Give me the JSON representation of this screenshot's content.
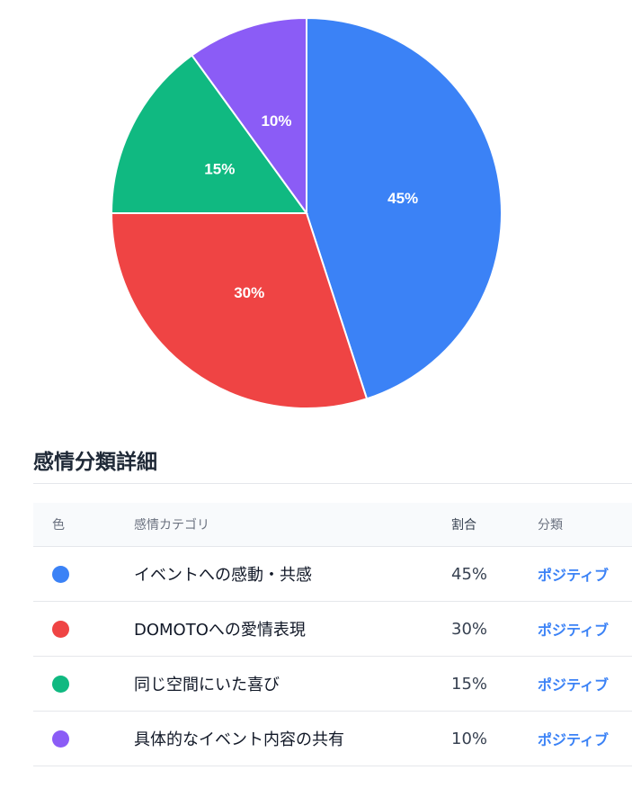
{
  "chart_data": {
    "type": "pie",
    "slices": [
      {
        "label": "イベントへの感動・共感",
        "value": 45,
        "display": "45%",
        "color": "#3b82f6"
      },
      {
        "label": "DOMOTOへの愛情表現",
        "value": 30,
        "display": "30%",
        "color": "#ef4444"
      },
      {
        "label": "同じ空間にいた喜び",
        "value": 15,
        "display": "15%",
        "color": "#10b981"
      },
      {
        "label": "具体的なイベント内容の共有",
        "value": 10,
        "display": "10%",
        "color": "#8b5cf6"
      }
    ]
  },
  "section": {
    "title": "感情分類詳細"
  },
  "table": {
    "headers": [
      "色",
      "感情カテゴリ",
      "割合",
      "分類"
    ],
    "rows": [
      {
        "color": "#3b82f6",
        "category": "イベントへの感動・共感",
        "ratio": "45%",
        "class": "ポジティブ"
      },
      {
        "color": "#ef4444",
        "category": "DOMOTOへの愛情表現",
        "ratio": "30%",
        "class": "ポジティブ"
      },
      {
        "color": "#10b981",
        "category": "同じ空間にいた喜び",
        "ratio": "15%",
        "class": "ポジティブ"
      },
      {
        "color": "#8b5cf6",
        "category": "具体的なイベント内容の共有",
        "ratio": "10%",
        "class": "ポジティブ"
      }
    ]
  }
}
